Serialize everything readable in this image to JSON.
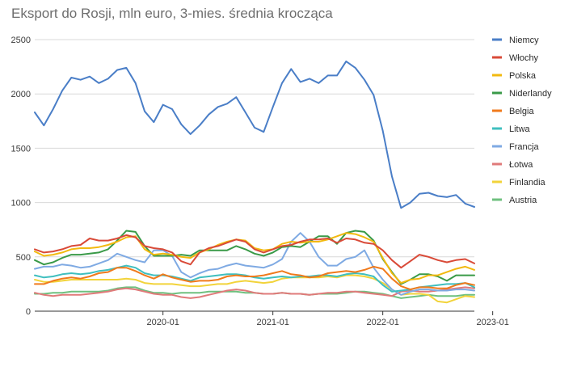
{
  "chart_data": {
    "type": "line",
    "title": "Eksport do Rosji, mln euro, 3-mies. średnia krocząca",
    "xlabel": "",
    "ylabel": "",
    "ylim": [
      0,
      2500
    ],
    "yticks": [
      0,
      500,
      1000,
      1500,
      2000,
      2500
    ],
    "x_start": "2018-11",
    "x_tick_labels": [
      {
        "label": "2020-01",
        "month_index": 14
      },
      {
        "label": "2021-01",
        "month_index": 26
      },
      {
        "label": "2022-01",
        "month_index": 38
      },
      {
        "label": "2023-01",
        "month_index": 50
      }
    ],
    "grid": true,
    "legend_position": "right",
    "series": [
      {
        "name": "Niemcy",
        "color": "#4a7ec7",
        "values": [
          1830,
          1710,
          1860,
          2030,
          2150,
          2130,
          2160,
          2100,
          2140,
          2220,
          2240,
          2100,
          1840,
          1740,
          1900,
          1860,
          1720,
          1630,
          1710,
          1810,
          1880,
          1910,
          1970,
          1830,
          1690,
          1650,
          1880,
          2100,
          2230,
          2110,
          2140,
          2100,
          2170,
          2170,
          2300,
          2240,
          2130,
          1990,
          1660,
          1240,
          950,
          1000,
          1080,
          1090,
          1060,
          1050,
          1070,
          990,
          960
        ]
      },
      {
        "name": "Włochy",
        "color": "#d94a38",
        "values": [
          570,
          540,
          550,
          570,
          600,
          610,
          670,
          650,
          650,
          670,
          700,
          680,
          600,
          580,
          570,
          540,
          460,
          430,
          540,
          580,
          600,
          630,
          660,
          640,
          570,
          540,
          570,
          600,
          610,
          640,
          660,
          660,
          670,
          630,
          670,
          660,
          630,
          620,
          560,
          470,
          400,
          460,
          520,
          500,
          470,
          450,
          470,
          480,
          440
        ]
      },
      {
        "name": "Polska",
        "color": "#f2b90f",
        "values": [
          550,
          510,
          520,
          540,
          570,
          580,
          580,
          590,
          610,
          640,
          680,
          690,
          570,
          520,
          530,
          520,
          500,
          490,
          540,
          570,
          610,
          640,
          660,
          650,
          580,
          560,
          570,
          620,
          640,
          630,
          640,
          640,
          660,
          690,
          720,
          710,
          680,
          640,
          490,
          350,
          260,
          290,
          300,
          330,
          330,
          360,
          390,
          410,
          380
        ]
      },
      {
        "name": "Niderlandy",
        "color": "#3a9a48",
        "values": [
          470,
          430,
          450,
          490,
          520,
          520,
          530,
          540,
          570,
          650,
          740,
          730,
          600,
          510,
          510,
          510,
          520,
          510,
          560,
          560,
          560,
          560,
          600,
          570,
          530,
          510,
          540,
          590,
          600,
          590,
          640,
          690,
          690,
          620,
          720,
          740,
          730,
          650,
          480,
          360,
          250,
          290,
          340,
          340,
          320,
          280,
          330,
          330,
          330
        ]
      },
      {
        "name": "Belgia",
        "color": "#f07a1c",
        "values": [
          250,
          250,
          280,
          300,
          310,
          300,
          320,
          350,
          360,
          400,
          400,
          370,
          330,
          300,
          340,
          310,
          290,
          270,
          280,
          280,
          290,
          320,
          330,
          320,
          320,
          330,
          350,
          370,
          340,
          330,
          310,
          320,
          350,
          360,
          370,
          360,
          380,
          410,
          390,
          300,
          230,
          200,
          220,
          220,
          210,
          210,
          240,
          260,
          240
        ]
      },
      {
        "name": "Litwa",
        "color": "#3fbfbf",
        "values": [
          330,
          310,
          320,
          340,
          350,
          340,
          350,
          370,
          380,
          400,
          420,
          400,
          350,
          330,
          330,
          320,
          300,
          280,
          310,
          320,
          330,
          340,
          340,
          330,
          310,
          300,
          310,
          320,
          310,
          320,
          320,
          330,
          330,
          320,
          340,
          350,
          340,
          320,
          240,
          180,
          190,
          200,
          220,
          230,
          240,
          250,
          250,
          260,
          220
        ]
      },
      {
        "name": "Francja",
        "color": "#7faae3",
        "values": [
          390,
          410,
          410,
          430,
          420,
          400,
          410,
          440,
          470,
          530,
          500,
          470,
          450,
          560,
          560,
          510,
          360,
          310,
          350,
          380,
          390,
          420,
          440,
          420,
          410,
          400,
          430,
          480,
          640,
          720,
          640,
          500,
          420,
          420,
          480,
          500,
          560,
          400,
          290,
          200,
          150,
          180,
          200,
          200,
          190,
          190,
          200,
          200,
          190
        ]
      },
      {
        "name": "Łotwa",
        "color": "#e07a7a",
        "values": [
          170,
          150,
          140,
          150,
          150,
          150,
          160,
          170,
          180,
          200,
          210,
          200,
          180,
          160,
          150,
          150,
          130,
          120,
          130,
          150,
          170,
          190,
          200,
          190,
          170,
          160,
          160,
          170,
          160,
          160,
          150,
          160,
          170,
          170,
          180,
          180,
          170,
          160,
          150,
          140,
          180,
          190,
          180,
          180,
          190,
          200,
          210,
          220,
          210
        ]
      },
      {
        "name": "Finlandia",
        "color": "#f2d33a",
        "values": [
          290,
          270,
          270,
          280,
          290,
          290,
          290,
          290,
          290,
          290,
          300,
          290,
          260,
          250,
          250,
          250,
          240,
          230,
          230,
          240,
          250,
          250,
          270,
          280,
          270,
          260,
          270,
          300,
          310,
          310,
          310,
          310,
          320,
          310,
          330,
          330,
          320,
          300,
          260,
          200,
          150,
          160,
          160,
          150,
          90,
          80,
          110,
          140,
          130
        ]
      },
      {
        "name": "Austria",
        "color": "#6fc07f",
        "values": [
          160,
          160,
          170,
          170,
          180,
          180,
          180,
          180,
          190,
          210,
          220,
          220,
          190,
          170,
          170,
          160,
          170,
          170,
          170,
          180,
          180,
          180,
          180,
          170,
          170,
          160,
          160,
          170,
          160,
          160,
          150,
          160,
          160,
          160,
          170,
          180,
          180,
          170,
          160,
          140,
          120,
          130,
          140,
          150,
          140,
          140,
          140,
          150,
          150
        ]
      }
    ]
  }
}
